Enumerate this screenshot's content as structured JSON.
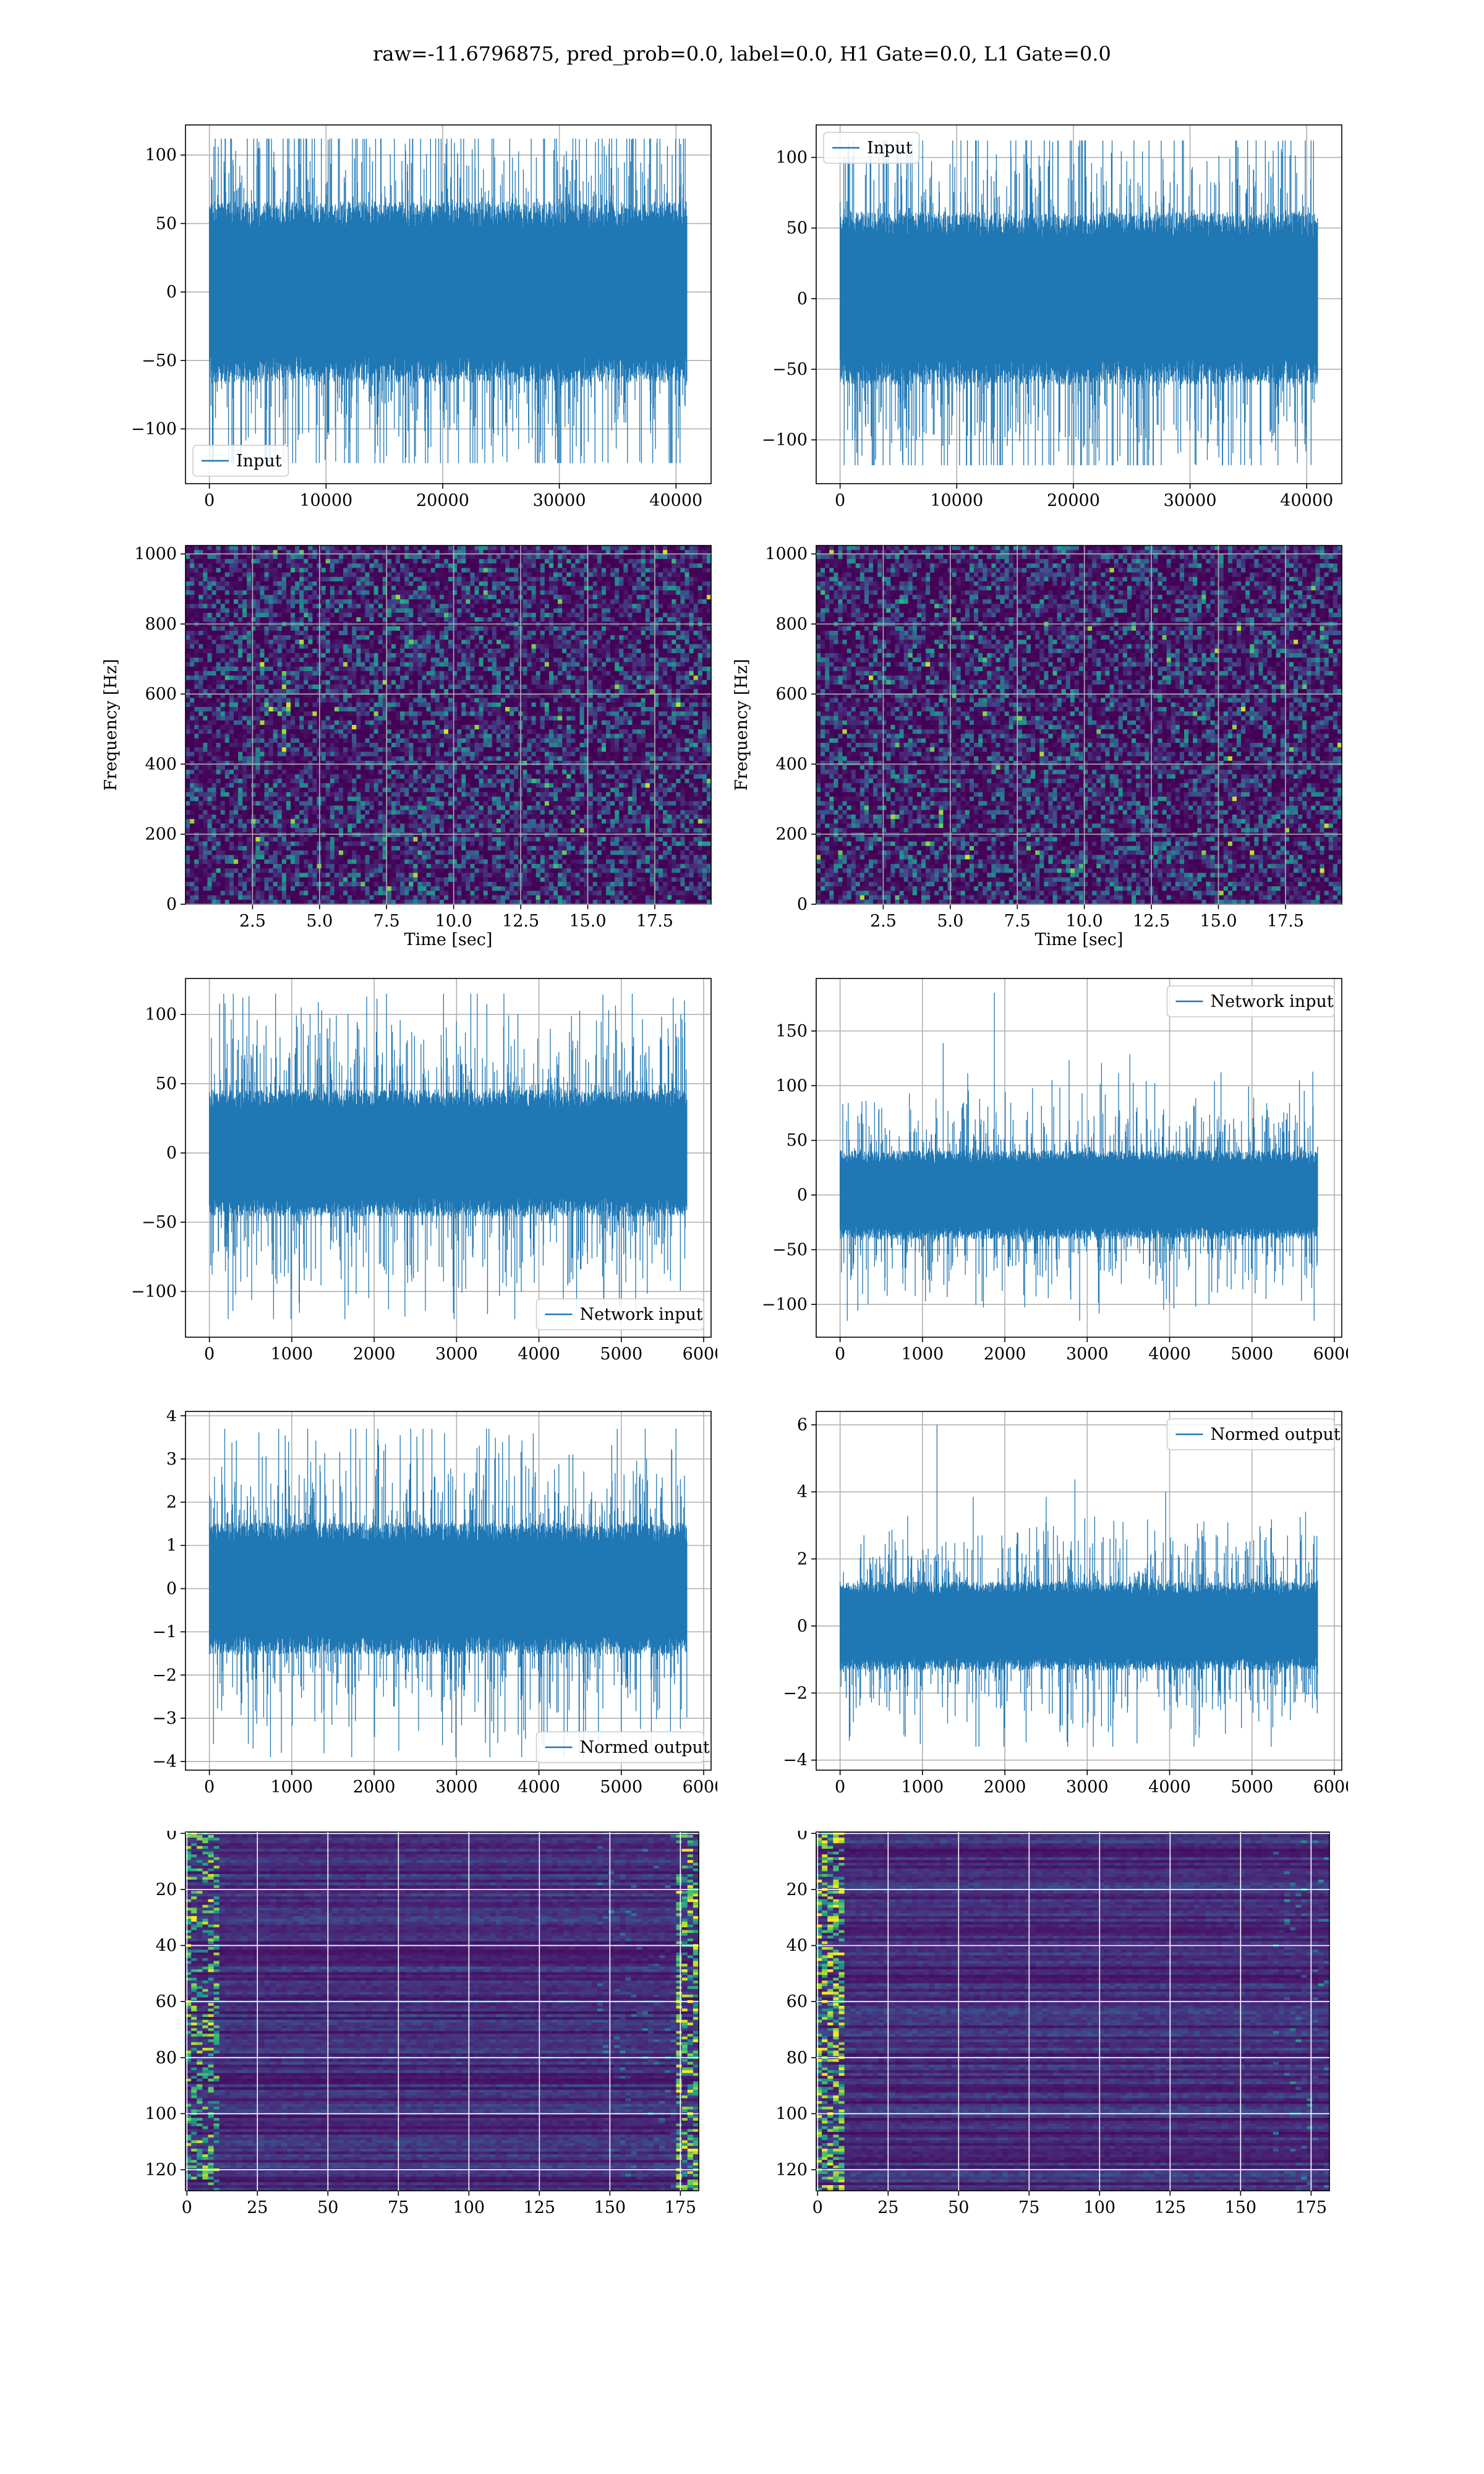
{
  "figure": {
    "title": "raw=-11.6796875, pred_prob=0.0, label=0.0, H1 Gate=0.0, L1 Gate=0.0"
  },
  "chart_data": [
    {
      "id": "h1-input",
      "type": "line",
      "series": [
        {
          "name": "Input",
          "color": "#1f77b4",
          "n_points": 40960,
          "center": 0,
          "band": [
            -65,
            65
          ],
          "extremes": [
            -125,
            112
          ]
        }
      ],
      "xlim": [
        -2048,
        43008
      ],
      "ylim": [
        -140,
        122
      ],
      "xticks": [
        0,
        10000,
        20000,
        30000,
        40000
      ],
      "yticks": [
        -100,
        -50,
        0,
        50,
        100
      ],
      "xlabel": "",
      "ylabel": "",
      "legend": "lower left",
      "grid": true
    },
    {
      "id": "l1-input",
      "type": "line",
      "series": [
        {
          "name": "Input",
          "color": "#1f77b4",
          "n_points": 40960,
          "center": 0,
          "band": [
            -60,
            60
          ],
          "extremes": [
            -118,
            112
          ]
        }
      ],
      "xlim": [
        -2048,
        43008
      ],
      "ylim": [
        -131,
        123
      ],
      "xticks": [
        0,
        10000,
        20000,
        30000,
        40000
      ],
      "yticks": [
        -100,
        -50,
        0,
        50,
        100
      ],
      "xlabel": "",
      "ylabel": "",
      "legend": "upper left",
      "grid": true
    },
    {
      "id": "h1-spectrogram",
      "type": "heatmap",
      "colormap": "viridis",
      "xlim": [
        0,
        19.6
      ],
      "ylim": [
        0,
        1024
      ],
      "xticks": [
        2.5,
        5.0,
        7.5,
        10.0,
        12.5,
        15.0,
        17.5
      ],
      "yticks": [
        0,
        200,
        400,
        600,
        800,
        1000
      ],
      "xlabel": "Time [sec]",
      "ylabel": "Frequency [Hz]",
      "grid": true
    },
    {
      "id": "l1-spectrogram",
      "type": "heatmap",
      "colormap": "viridis",
      "xlim": [
        0,
        19.6
      ],
      "ylim": [
        0,
        1024
      ],
      "xticks": [
        2.5,
        5.0,
        7.5,
        10.0,
        12.5,
        15.0,
        17.5
      ],
      "yticks": [
        0,
        200,
        400,
        600,
        800,
        1000
      ],
      "xlabel": "Time [sec]",
      "ylabel": "Frequency [Hz]",
      "grid": true
    },
    {
      "id": "h1-network-input",
      "type": "line",
      "series": [
        {
          "name": "Network input",
          "color": "#1f77b4",
          "n_points": 5800,
          "center": 0,
          "band": [
            -45,
            45
          ],
          "extremes": [
            -120,
            115
          ]
        }
      ],
      "xlim": [
        -290,
        6090
      ],
      "ylim": [
        -133,
        126
      ],
      "xticks": [
        0,
        1000,
        2000,
        3000,
        4000,
        5000,
        6000
      ],
      "yticks": [
        -100,
        -50,
        0,
        50,
        100
      ],
      "xlabel": "",
      "ylabel": "",
      "legend": "lower right",
      "grid": true
    },
    {
      "id": "l1-network-input",
      "type": "line",
      "series": [
        {
          "name": "Network input",
          "color": "#1f77b4",
          "n_points": 5800,
          "center": 0,
          "band": [
            -40,
            40
          ],
          "extremes": [
            -115,
            185
          ]
        }
      ],
      "xlim": [
        -290,
        6090
      ],
      "ylim": [
        -130,
        198
      ],
      "xticks": [
        0,
        1000,
        2000,
        3000,
        4000,
        5000,
        6000
      ],
      "yticks": [
        -100,
        -50,
        0,
        50,
        100,
        150
      ],
      "xlabel": "",
      "ylabel": "",
      "legend": "upper right",
      "grid": true
    },
    {
      "id": "h1-normed-output",
      "type": "line",
      "series": [
        {
          "name": "Normed output",
          "color": "#1f77b4",
          "n_points": 5800,
          "center": 0,
          "band": [
            -1.5,
            1.5
          ],
          "extremes": [
            -3.9,
            3.7
          ]
        }
      ],
      "xlim": [
        -290,
        6090
      ],
      "ylim": [
        -4.2,
        4.1
      ],
      "xticks": [
        0,
        1000,
        2000,
        3000,
        4000,
        5000,
        6000
      ],
      "yticks": [
        -4,
        -3,
        -2,
        -1,
        0,
        1,
        2,
        3,
        4
      ],
      "xlabel": "",
      "ylabel": "",
      "legend": "lower right",
      "grid": true
    },
    {
      "id": "l1-normed-output",
      "type": "line",
      "series": [
        {
          "name": "Normed output",
          "color": "#1f77b4",
          "n_points": 5800,
          "center": 0,
          "band": [
            -1.3,
            1.3
          ],
          "extremes": [
            -3.6,
            6.0
          ]
        }
      ],
      "xlim": [
        -290,
        6090
      ],
      "ylim": [
        -4.3,
        6.4
      ],
      "xticks": [
        0,
        1000,
        2000,
        3000,
        4000,
        5000,
        6000
      ],
      "yticks": [
        -4,
        -2,
        0,
        2,
        4,
        6
      ],
      "xlabel": "",
      "ylabel": "",
      "legend": "upper right",
      "grid": true
    },
    {
      "id": "h1-feature-map",
      "type": "heatmap",
      "colormap": "viridis",
      "rows": 128,
      "cols": 182,
      "xlim": [
        -0.5,
        181.5
      ],
      "ylim": [
        127.5,
        -0.5
      ],
      "xticks": [
        0,
        25,
        50,
        75,
        100,
        125,
        150,
        175
      ],
      "yticks": [
        0,
        20,
        40,
        60,
        80,
        100,
        120
      ],
      "xlabel": "",
      "ylabel": "",
      "bright_columns": "edges",
      "grid": true
    },
    {
      "id": "l1-feature-map",
      "type": "heatmap",
      "colormap": "viridis",
      "rows": 128,
      "cols": 182,
      "xlim": [
        -0.5,
        181.5
      ],
      "ylim": [
        127.5,
        -0.5
      ],
      "xticks": [
        0,
        25,
        50,
        75,
        100,
        125,
        150,
        175
      ],
      "yticks": [
        0,
        20,
        40,
        60,
        80,
        100,
        120
      ],
      "xlabel": "",
      "ylabel": "",
      "bright_columns": "left",
      "grid": true
    }
  ]
}
